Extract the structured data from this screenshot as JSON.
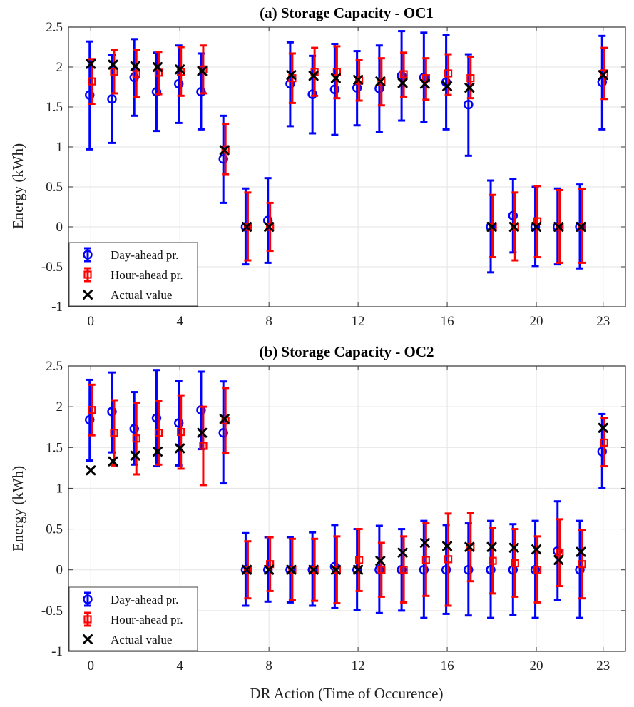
{
  "chart_data": [
    {
      "type": "scatter",
      "title": "(a) Storage Capacity - OC1",
      "xlabel": "",
      "ylabel": "Energy (kWh)",
      "xlim": [
        -1,
        24
      ],
      "ylim": [
        -1,
        2.5
      ],
      "xticks": [
        0,
        4,
        8,
        12,
        16,
        20,
        23
      ],
      "yticks": [
        -1,
        -0.5,
        0,
        0.5,
        1,
        1.5,
        2,
        2.5
      ],
      "grid": true,
      "legend_position": "bottom-left",
      "series": [
        {
          "name": "Day-ahead pr.",
          "color": "#0000ff",
          "marker": "circle",
          "errorbars": true,
          "points": [
            {
              "x": 0,
              "y": 1.65,
              "low": 0.97,
              "high": 2.32
            },
            {
              "x": 1,
              "y": 1.6,
              "low": 1.05,
              "high": 2.15
            },
            {
              "x": 2,
              "y": 1.87,
              "low": 1.39,
              "high": 2.35
            },
            {
              "x": 3,
              "y": 1.69,
              "low": 1.2,
              "high": 2.18
            },
            {
              "x": 4,
              "y": 1.79,
              "low": 1.3,
              "high": 2.27
            },
            {
              "x": 5,
              "y": 1.69,
              "low": 1.22,
              "high": 2.17
            },
            {
              "x": 6,
              "y": 0.85,
              "low": 0.3,
              "high": 1.39
            },
            {
              "x": 7,
              "y": 0.0,
              "low": -0.47,
              "high": 0.48
            },
            {
              "x": 8,
              "y": 0.08,
              "low": -0.45,
              "high": 0.61
            },
            {
              "x": 9,
              "y": 1.79,
              "low": 1.26,
              "high": 2.31
            },
            {
              "x": 10,
              "y": 1.66,
              "low": 1.17,
              "high": 2.14
            },
            {
              "x": 11,
              "y": 1.72,
              "low": 1.15,
              "high": 2.29
            },
            {
              "x": 12,
              "y": 1.74,
              "low": 1.27,
              "high": 2.2
            },
            {
              "x": 13,
              "y": 1.73,
              "low": 1.19,
              "high": 2.27
            },
            {
              "x": 14,
              "y": 1.89,
              "low": 1.33,
              "high": 2.45
            },
            {
              "x": 15,
              "y": 1.87,
              "low": 1.31,
              "high": 2.43
            },
            {
              "x": 16,
              "y": 1.81,
              "low": 1.22,
              "high": 2.4
            },
            {
              "x": 17,
              "y": 1.53,
              "low": 0.89,
              "high": 2.16
            },
            {
              "x": 18,
              "y": 0.0,
              "low": -0.57,
              "high": 0.58
            },
            {
              "x": 19,
              "y": 0.14,
              "low": -0.32,
              "high": 0.6
            },
            {
              "x": 20,
              "y": 0.0,
              "low": -0.49,
              "high": 0.5
            },
            {
              "x": 21,
              "y": 0.0,
              "low": -0.47,
              "high": 0.48
            },
            {
              "x": 22,
              "y": 0.0,
              "low": -0.52,
              "high": 0.53
            },
            {
              "x": 23,
              "y": 1.81,
              "low": 1.22,
              "high": 2.39
            }
          ]
        },
        {
          "name": "Hour-ahead pr.",
          "color": "#ff0000",
          "marker": "square",
          "errorbars": true,
          "points": [
            {
              "x": 0,
              "y": 1.82,
              "low": 1.54,
              "high": 2.1
            },
            {
              "x": 1,
              "y": 1.94,
              "low": 1.67,
              "high": 2.21
            },
            {
              "x": 2,
              "y": 1.91,
              "low": 1.62,
              "high": 2.21
            },
            {
              "x": 3,
              "y": 1.93,
              "low": 1.66,
              "high": 2.19
            },
            {
              "x": 4,
              "y": 1.94,
              "low": 1.64,
              "high": 2.25
            },
            {
              "x": 5,
              "y": 1.97,
              "low": 1.67,
              "high": 2.27
            },
            {
              "x": 6,
              "y": 0.97,
              "low": 0.66,
              "high": 1.29
            },
            {
              "x": 7,
              "y": 0.0,
              "low": -0.42,
              "high": 0.43
            },
            {
              "x": 8,
              "y": 0.0,
              "low": -0.3,
              "high": 0.3
            },
            {
              "x": 9,
              "y": 1.86,
              "low": 1.55,
              "high": 2.17
            },
            {
              "x": 10,
              "y": 1.94,
              "low": 1.64,
              "high": 2.24
            },
            {
              "x": 11,
              "y": 1.94,
              "low": 1.61,
              "high": 2.26
            },
            {
              "x": 12,
              "y": 1.83,
              "low": 1.58,
              "high": 2.09
            },
            {
              "x": 13,
              "y": 1.81,
              "low": 1.52,
              "high": 2.11
            },
            {
              "x": 14,
              "y": 1.91,
              "low": 1.63,
              "high": 2.18
            },
            {
              "x": 15,
              "y": 1.86,
              "low": 1.59,
              "high": 2.11
            },
            {
              "x": 16,
              "y": 1.92,
              "low": 1.65,
              "high": 2.16
            },
            {
              "x": 17,
              "y": 1.86,
              "low": 1.61,
              "high": 2.13
            },
            {
              "x": 18,
              "y": 0.0,
              "low": -0.38,
              "high": 0.4
            },
            {
              "x": 19,
              "y": 0.0,
              "low": -0.42,
              "high": 0.43
            },
            {
              "x": 20,
              "y": 0.07,
              "low": -0.38,
              "high": 0.51
            },
            {
              "x": 21,
              "y": 0.0,
              "low": -0.45,
              "high": 0.46
            },
            {
              "x": 22,
              "y": 0.0,
              "low": -0.45,
              "high": 0.47
            },
            {
              "x": 23,
              "y": 1.92,
              "low": 1.6,
              "high": 2.24
            }
          ]
        },
        {
          "name": "Actual value",
          "color": "#000000",
          "marker": "x",
          "errorbars": false,
          "points": [
            {
              "x": 0,
              "y": 2.04
            },
            {
              "x": 1,
              "y": 2.03
            },
            {
              "x": 2,
              "y": 2.01
            },
            {
              "x": 3,
              "y": 2.0
            },
            {
              "x": 4,
              "y": 1.97
            },
            {
              "x": 5,
              "y": 1.95
            },
            {
              "x": 6,
              "y": 0.96
            },
            {
              "x": 7,
              "y": 0.0
            },
            {
              "x": 8,
              "y": 0.0
            },
            {
              "x": 9,
              "y": 1.9
            },
            {
              "x": 10,
              "y": 1.89
            },
            {
              "x": 11,
              "y": 1.86
            },
            {
              "x": 12,
              "y": 1.84
            },
            {
              "x": 13,
              "y": 1.82
            },
            {
              "x": 14,
              "y": 1.8
            },
            {
              "x": 15,
              "y": 1.79
            },
            {
              "x": 16,
              "y": 1.76
            },
            {
              "x": 17,
              "y": 1.74
            },
            {
              "x": 18,
              "y": 0.0
            },
            {
              "x": 19,
              "y": 0.0
            },
            {
              "x": 20,
              "y": 0.0
            },
            {
              "x": 21,
              "y": 0.0
            },
            {
              "x": 22,
              "y": 0.0
            },
            {
              "x": 23,
              "y": 1.9
            }
          ]
        }
      ]
    },
    {
      "type": "scatter",
      "title": "(b) Storage Capacity - OC2",
      "xlabel": "DR Action (Time of Occurence)",
      "ylabel": "Energy (kWh)",
      "xlim": [
        -1,
        24
      ],
      "ylim": [
        -1,
        2.5
      ],
      "xticks": [
        0,
        4,
        8,
        12,
        16,
        20,
        23
      ],
      "yticks": [
        -1,
        -0.5,
        0,
        0.5,
        1,
        1.5,
        2,
        2.5
      ],
      "grid": true,
      "legend_position": "bottom-left",
      "series": [
        {
          "name": "Day-ahead pr.",
          "color": "#0000ff",
          "marker": "circle",
          "errorbars": true,
          "points": [
            {
              "x": 0,
              "y": 1.84,
              "low": 1.34,
              "high": 2.33
            },
            {
              "x": 1,
              "y": 1.94,
              "low": 1.44,
              "high": 2.42
            },
            {
              "x": 2,
              "y": 1.73,
              "low": 1.29,
              "high": 2.18
            },
            {
              "x": 3,
              "y": 1.86,
              "low": 1.27,
              "high": 2.45
            },
            {
              "x": 4,
              "y": 1.8,
              "low": 1.28,
              "high": 2.32
            },
            {
              "x": 5,
              "y": 1.96,
              "low": 1.48,
              "high": 2.43
            },
            {
              "x": 6,
              "y": 1.68,
              "low": 1.06,
              "high": 2.31
            },
            {
              "x": 7,
              "y": 0.0,
              "low": -0.44,
              "high": 0.45
            },
            {
              "x": 8,
              "y": 0.0,
              "low": -0.39,
              "high": 0.4
            },
            {
              "x": 9,
              "y": 0.0,
              "low": -0.4,
              "high": 0.4
            },
            {
              "x": 10,
              "y": 0.0,
              "low": -0.44,
              "high": 0.46
            },
            {
              "x": 11,
              "y": 0.04,
              "low": -0.47,
              "high": 0.55
            },
            {
              "x": 12,
              "y": 0.0,
              "low": -0.49,
              "high": 0.5
            },
            {
              "x": 13,
              "y": 0.0,
              "low": -0.53,
              "high": 0.54
            },
            {
              "x": 14,
              "y": 0.0,
              "low": -0.5,
              "high": 0.5
            },
            {
              "x": 15,
              "y": 0.0,
              "low": -0.59,
              "high": 0.6
            },
            {
              "x": 16,
              "y": 0.0,
              "low": -0.54,
              "high": 0.55
            },
            {
              "x": 17,
              "y": 0.0,
              "low": -0.56,
              "high": 0.57
            },
            {
              "x": 18,
              "y": 0.0,
              "low": -0.59,
              "high": 0.6
            },
            {
              "x": 19,
              "y": 0.0,
              "low": -0.55,
              "high": 0.56
            },
            {
              "x": 20,
              "y": 0.0,
              "low": -0.59,
              "high": 0.6
            },
            {
              "x": 21,
              "y": 0.23,
              "low": -0.37,
              "high": 0.84
            },
            {
              "x": 22,
              "y": 0.0,
              "low": -0.59,
              "high": 0.6
            },
            {
              "x": 23,
              "y": 1.45,
              "low": 1.0,
              "high": 1.91
            }
          ]
        },
        {
          "name": "Hour-ahead pr.",
          "color": "#ff0000",
          "marker": "square",
          "errorbars": true,
          "points": [
            {
              "x": 0,
              "y": 1.96,
              "low": 1.65,
              "high": 2.27
            },
            {
              "x": 1,
              "y": 1.68,
              "low": 1.28,
              "high": 2.08
            },
            {
              "x": 2,
              "y": 1.61,
              "low": 1.17,
              "high": 2.05
            },
            {
              "x": 3,
              "y": 1.68,
              "low": 1.29,
              "high": 2.07
            },
            {
              "x": 4,
              "y": 1.69,
              "low": 1.24,
              "high": 2.14
            },
            {
              "x": 5,
              "y": 1.52,
              "low": 1.04,
              "high": 2.0
            },
            {
              "x": 6,
              "y": 1.83,
              "low": 1.43,
              "high": 2.23
            },
            {
              "x": 7,
              "y": 0.0,
              "low": -0.35,
              "high": 0.35
            },
            {
              "x": 8,
              "y": 0.07,
              "low": -0.26,
              "high": 0.4
            },
            {
              "x": 9,
              "y": 0.0,
              "low": -0.37,
              "high": 0.38
            },
            {
              "x": 10,
              "y": 0.0,
              "low": -0.38,
              "high": 0.38
            },
            {
              "x": 11,
              "y": 0.0,
              "low": -0.41,
              "high": 0.41
            },
            {
              "x": 12,
              "y": 0.12,
              "low": -0.26,
              "high": 0.5
            },
            {
              "x": 13,
              "y": 0.0,
              "low": -0.33,
              "high": 0.33
            },
            {
              "x": 14,
              "y": 0.0,
              "low": -0.4,
              "high": 0.41
            },
            {
              "x": 15,
              "y": 0.12,
              "low": -0.32,
              "high": 0.57
            },
            {
              "x": 16,
              "y": 0.13,
              "low": -0.44,
              "high": 0.69
            },
            {
              "x": 17,
              "y": 0.28,
              "low": -0.14,
              "high": 0.7
            },
            {
              "x": 18,
              "y": 0.11,
              "low": -0.29,
              "high": 0.51
            },
            {
              "x": 19,
              "y": 0.08,
              "low": -0.33,
              "high": 0.5
            },
            {
              "x": 20,
              "y": 0.0,
              "low": -0.4,
              "high": 0.41
            },
            {
              "x": 21,
              "y": 0.21,
              "low": -0.2,
              "high": 0.62
            },
            {
              "x": 22,
              "y": 0.07,
              "low": -0.35,
              "high": 0.49
            },
            {
              "x": 23,
              "y": 1.56,
              "low": 1.27,
              "high": 1.86
            }
          ]
        },
        {
          "name": "Actual value",
          "color": "#000000",
          "marker": "x",
          "errorbars": false,
          "points": [
            {
              "x": 0,
              "y": 1.22
            },
            {
              "x": 1,
              "y": 1.33
            },
            {
              "x": 2,
              "y": 1.4
            },
            {
              "x": 3,
              "y": 1.45
            },
            {
              "x": 4,
              "y": 1.49
            },
            {
              "x": 5,
              "y": 1.68
            },
            {
              "x": 6,
              "y": 1.85
            },
            {
              "x": 7,
              "y": 0.0
            },
            {
              "x": 8,
              "y": 0.0
            },
            {
              "x": 9,
              "y": 0.0
            },
            {
              "x": 10,
              "y": 0.0
            },
            {
              "x": 11,
              "y": 0.0
            },
            {
              "x": 12,
              "y": 0.0
            },
            {
              "x": 13,
              "y": 0.11
            },
            {
              "x": 14,
              "y": 0.21
            },
            {
              "x": 15,
              "y": 0.33
            },
            {
              "x": 16,
              "y": 0.29
            },
            {
              "x": 17,
              "y": 0.28
            },
            {
              "x": 18,
              "y": 0.28
            },
            {
              "x": 19,
              "y": 0.27
            },
            {
              "x": 20,
              "y": 0.25
            },
            {
              "x": 21,
              "y": 0.12
            },
            {
              "x": 22,
              "y": 0.22
            },
            {
              "x": 23,
              "y": 1.74
            }
          ]
        }
      ]
    }
  ]
}
